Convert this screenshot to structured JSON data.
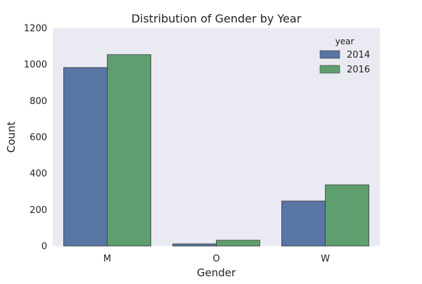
{
  "chart_data": {
    "type": "bar",
    "title": "Distribution of Gender by Year",
    "xlabel": "Gender",
    "ylabel": "Count",
    "categories": [
      "M",
      "O",
      "W"
    ],
    "ylim": [
      0,
      1200
    ],
    "yticks": [
      0,
      200,
      400,
      600,
      800,
      1000,
      1200
    ],
    "grid": false,
    "legend": {
      "title": "year",
      "placement": "top-right"
    },
    "series": [
      {
        "name": "2014",
        "values": [
          983,
          12,
          248
        ],
        "color": "#5875a4"
      },
      {
        "name": "2016",
        "values": [
          1054,
          32,
          337
        ],
        "color": "#5f9e6e"
      }
    ],
    "background_color": "#eaeaf2"
  }
}
